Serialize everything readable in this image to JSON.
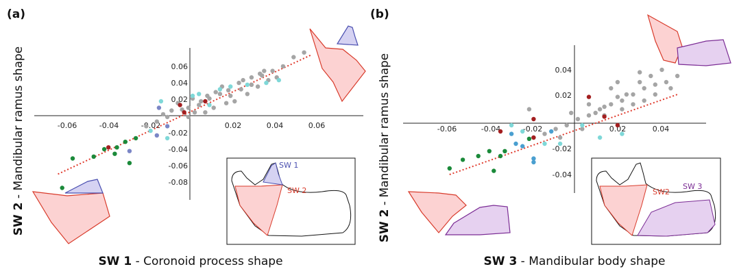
{
  "chart_data": [
    {
      "type": "scatter",
      "panel_label": "(a)",
      "xlabel_bold": "SW 1",
      "xlabel_rest": " - Coronoid process shape",
      "ylabel_bold": "SW 2",
      "ylabel_rest": " - Mandibular ramus shape",
      "x_ticks": [
        "-0.06",
        "-0.04",
        "-0.02",
        "0.02",
        "0.04",
        "0.06"
      ],
      "y_ticks": [
        "0.06",
        "0.04",
        "0.02",
        "-0.02",
        "-0.04",
        "-0.06",
        "-0.08"
      ],
      "xlim": [
        -0.07,
        0.075
      ],
      "ylim": [
        -0.095,
        0.07
      ],
      "grid": false,
      "inset_labels": [
        "SW 1",
        "SW 2"
      ],
      "trendline": {
        "x": [
          -0.062,
          0.058
        ],
        "y": [
          -0.067,
          0.062
        ],
        "color": "#e03a2c"
      },
      "colors": {
        "grey": "#a5a5a5",
        "darkred": "#a31f20",
        "cyan": "#7fd8d8",
        "green": "#1b8a3a",
        "slate": "#7b86c6",
        "blue": "#4a9fd0"
      },
      "series": [
        {
          "color_key": "grey",
          "points": [
            [
              -0.005,
              0.01
            ],
            [
              0.0,
              0.005
            ],
            [
              0.005,
              0.008
            ],
            [
              0.01,
              0.015
            ],
            [
              0.015,
              0.02
            ],
            [
              0.02,
              0.018
            ],
            [
              0.025,
              0.025
            ],
            [
              0.03,
              0.03
            ],
            [
              0.035,
              0.04
            ],
            [
              0.04,
              0.045
            ],
            [
              0.045,
              0.05
            ],
            [
              -0.01,
              -0.005
            ],
            [
              -0.015,
              -0.01
            ],
            [
              -0.02,
              -0.015
            ],
            [
              0.008,
              0.0
            ],
            [
              0.012,
              0.005
            ],
            [
              0.018,
              0.01
            ],
            [
              0.022,
              0.012
            ],
            [
              0.028,
              0.02
            ],
            [
              0.033,
              0.028
            ],
            [
              0.038,
              0.035
            ],
            [
              0.042,
              0.038
            ],
            [
              0.05,
              0.06
            ],
            [
              0.055,
              0.065
            ],
            [
              0.0,
              -0.005
            ],
            [
              0.003,
              0.0
            ],
            [
              -0.003,
              0.003
            ],
            [
              0.006,
              0.012
            ],
            [
              0.016,
              0.028
            ],
            [
              0.024,
              0.032
            ],
            [
              0.03,
              0.038
            ],
            [
              0.036,
              0.045
            ],
            [
              0.013,
              0.022
            ],
            [
              -0.008,
              0.002
            ],
            [
              0.002,
              0.015
            ],
            [
              -0.012,
              -0.002
            ],
            [
              0.009,
              0.018
            ],
            [
              0.019,
              0.024
            ],
            [
              0.026,
              0.035
            ],
            [
              0.034,
              0.042
            ]
          ]
        },
        {
          "color_key": "darkred",
          "points": [
            [
              -0.004,
              0.008
            ],
            [
              0.008,
              0.012
            ],
            [
              -0.002,
              0.0
            ],
            [
              -0.038,
              -0.038
            ]
          ]
        },
        {
          "color_key": "cyan",
          "points": [
            [
              -0.013,
              0.012
            ],
            [
              0.005,
              0.02
            ],
            [
              0.015,
              0.025
            ],
            [
              0.02,
              0.028
            ],
            [
              0.028,
              0.03
            ],
            [
              0.037,
              0.032
            ],
            [
              0.043,
              0.035
            ],
            [
              -0.018,
              -0.02
            ],
            [
              0.01,
              0.008
            ],
            [
              -0.01,
              -0.028
            ],
            [
              0.002,
              0.018
            ]
          ]
        },
        {
          "color_key": "green",
          "points": [
            [
              -0.055,
              -0.05
            ],
            [
              -0.045,
              -0.048
            ],
            [
              -0.034,
              -0.038
            ],
            [
              -0.03,
              -0.032
            ],
            [
              -0.035,
              -0.045
            ],
            [
              -0.028,
              -0.055
            ],
            [
              -0.04,
              -0.04
            ],
            [
              -0.06,
              -0.082
            ],
            [
              -0.025,
              -0.028
            ]
          ]
        },
        {
          "color_key": "slate",
          "points": [
            [
              -0.014,
              0.005
            ],
            [
              -0.015,
              -0.025
            ],
            [
              -0.028,
              -0.042
            ],
            [
              -0.01,
              -0.015
            ]
          ]
        }
      ]
    },
    {
      "type": "scatter",
      "panel_label": "(b)",
      "xlabel_bold": "SW 3",
      "xlabel_rest": " - Mandibular body shape",
      "ylabel_bold": "SW 2",
      "ylabel_rest": " - Mandibular ramus shape",
      "x_ticks": [
        "-0.06",
        "-0.04",
        "-0.02",
        "0.02",
        "0.04"
      ],
      "y_ticks": [
        "0.04",
        "0.02",
        "-0.02",
        "-0.04"
      ],
      "xlim": [
        -0.079,
        0.058
      ],
      "ylim": [
        -0.06,
        0.06
      ],
      "grid": false,
      "inset_labels": [
        "SW2",
        "SW 3"
      ],
      "trendline": {
        "x": [
          -0.058,
          0.045
        ],
        "y": [
          -0.045,
          0.02
        ],
        "color": "#e03a2c"
      },
      "colors": {
        "grey": "#a5a5a5",
        "darkred": "#a31f20",
        "cyan": "#7fd8d8",
        "green": "#1b8a3a",
        "slate": "#7b86c6",
        "blue": "#4a9fd0"
      },
      "series": [
        {
          "color_key": "grey",
          "points": [
            [
              -0.005,
              -0.005
            ],
            [
              0.0,
              0.0
            ],
            [
              0.005,
              0.003
            ],
            [
              0.01,
              0.008
            ],
            [
              0.015,
              0.012
            ],
            [
              0.02,
              0.015
            ],
            [
              0.025,
              0.02
            ],
            [
              0.03,
              0.025
            ],
            [
              0.035,
              0.028
            ],
            [
              0.04,
              0.03
            ],
            [
              0.045,
              0.035
            ],
            [
              -0.01,
              -0.008
            ],
            [
              -0.015,
              -0.012
            ],
            [
              -0.02,
              -0.015
            ],
            [
              0.008,
              0.005
            ],
            [
              0.012,
              0.01
            ],
            [
              0.018,
              0.018
            ],
            [
              0.022,
              0.02
            ],
            [
              0.028,
              0.03
            ],
            [
              0.033,
              0.035
            ],
            [
              0.038,
              0.04
            ],
            [
              0.03,
              0.015
            ],
            [
              0.005,
              0.012
            ],
            [
              -0.003,
              0.005
            ],
            [
              0.002,
              -0.008
            ],
            [
              0.015,
              0.025
            ],
            [
              0.025,
              0.012
            ],
            [
              0.035,
              0.02
            ],
            [
              -0.008,
              -0.015
            ],
            [
              0.012,
              0.003
            ],
            [
              0.02,
              0.008
            ],
            [
              0.042,
              0.025
            ],
            [
              -0.022,
              0.008
            ],
            [
              0.018,
              0.03
            ],
            [
              0.028,
              0.038
            ]
          ]
        },
        {
          "color_key": "darkred",
          "points": [
            [
              0.005,
              0.018
            ],
            [
              0.012,
              0.002
            ],
            [
              -0.035,
              -0.01
            ],
            [
              -0.02,
              0.0
            ],
            [
              0.018,
              -0.005
            ],
            [
              -0.02,
              -0.015
            ]
          ]
        },
        {
          "color_key": "cyan",
          "points": [
            [
              -0.03,
              -0.005
            ],
            [
              -0.025,
              -0.01
            ],
            [
              0.01,
              -0.015
            ],
            [
              0.02,
              -0.012
            ],
            [
              0.002,
              -0.005
            ],
            [
              -0.015,
              -0.02
            ],
            [
              -0.008,
              -0.02
            ]
          ]
        },
        {
          "color_key": "green",
          "points": [
            [
              -0.058,
              -0.04
            ],
            [
              -0.052,
              -0.033
            ],
            [
              -0.045,
              -0.03
            ],
            [
              -0.04,
              -0.026
            ],
            [
              -0.038,
              -0.042
            ],
            [
              -0.033,
              -0.026
            ],
            [
              -0.022,
              -0.016
            ],
            [
              -0.035,
              -0.03
            ]
          ]
        },
        {
          "color_key": "blue",
          "points": [
            [
              -0.03,
              -0.012
            ],
            [
              -0.028,
              -0.02
            ],
            [
              -0.025,
              -0.022
            ],
            [
              -0.02,
              -0.032
            ],
            [
              -0.02,
              -0.035
            ],
            [
              -0.012,
              -0.01
            ]
          ]
        }
      ]
    }
  ]
}
